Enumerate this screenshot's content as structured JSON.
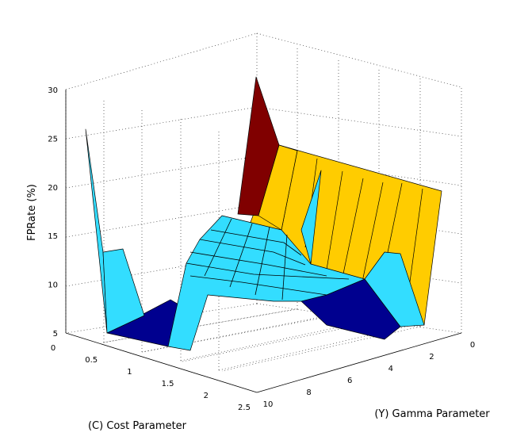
{
  "chart_data": {
    "type": "surface3d",
    "xlabel": "(C) Cost Parameter",
    "ylabel": "(Y) Gamma Parameter",
    "zlabel": "FPRate (%)",
    "xlim": [
      0,
      2.5
    ],
    "ylim": [
      0,
      10
    ],
    "zlim": [
      5,
      30
    ],
    "x_ticks": [
      "0",
      "0.5",
      "1",
      "1.5",
      "2",
      "2.5"
    ],
    "y_ticks": [
      "0",
      "2",
      "4",
      "6",
      "8",
      "10"
    ],
    "z_ticks": [
      "5",
      "10",
      "15",
      "20",
      "25",
      "30"
    ],
    "grid": true,
    "colors": {
      "low": "#00008f",
      "mid": "#33ddff",
      "high": "#ffcc00",
      "peak": "#800000"
    },
    "surface": [
      {
        "x": 0.0,
        "y": 10,
        "z": 26
      },
      {
        "x": 0.0,
        "y": 0,
        "z": 31
      },
      {
        "x": 0.3,
        "y": 10,
        "z": 13.5
      },
      {
        "x": 0.5,
        "y": 10,
        "z": 6
      },
      {
        "x": 1.0,
        "y": 5,
        "z": 12
      },
      {
        "x": 1.0,
        "y": 8,
        "z": 11
      },
      {
        "x": 1.5,
        "y": 6,
        "z": 12.5
      },
      {
        "x": 2.0,
        "y": 3,
        "z": 11.5
      },
      {
        "x": 2.5,
        "y": 0,
        "z": 19.5
      },
      {
        "x": 2.5,
        "y": 4,
        "z": 6
      },
      {
        "x": 2.5,
        "y": 10,
        "z": 7
      }
    ]
  }
}
